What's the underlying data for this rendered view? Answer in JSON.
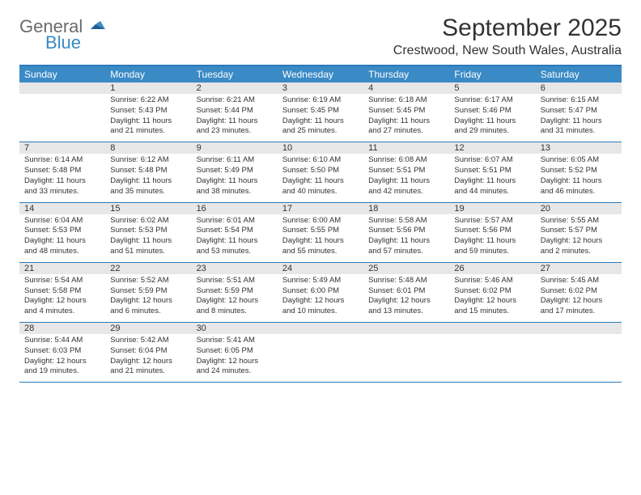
{
  "logo": {
    "line1": "General",
    "line2": "Blue",
    "color_general": "#6b6b6b",
    "color_blue": "#3a8ac6",
    "flag_color": "#205e92"
  },
  "header": {
    "month_title": "September 2025",
    "location": "Crestwood, New South Wales, Australia"
  },
  "colors": {
    "header_bar": "#3a8ac6",
    "header_text": "#ffffff",
    "rule": "#2a7ab9",
    "daynum_bg": "#e7e7e7",
    "text": "#333333",
    "background": "#ffffff"
  },
  "day_names": [
    "Sunday",
    "Monday",
    "Tuesday",
    "Wednesday",
    "Thursday",
    "Friday",
    "Saturday"
  ],
  "weeks": [
    [
      {
        "date": "",
        "sunrise": "",
        "sunset": "",
        "daylight": ""
      },
      {
        "date": "1",
        "sunrise": "Sunrise: 6:22 AM",
        "sunset": "Sunset: 5:43 PM",
        "daylight": "Daylight: 11 hours and 21 minutes."
      },
      {
        "date": "2",
        "sunrise": "Sunrise: 6:21 AM",
        "sunset": "Sunset: 5:44 PM",
        "daylight": "Daylight: 11 hours and 23 minutes."
      },
      {
        "date": "3",
        "sunrise": "Sunrise: 6:19 AM",
        "sunset": "Sunset: 5:45 PM",
        "daylight": "Daylight: 11 hours and 25 minutes."
      },
      {
        "date": "4",
        "sunrise": "Sunrise: 6:18 AM",
        "sunset": "Sunset: 5:45 PM",
        "daylight": "Daylight: 11 hours and 27 minutes."
      },
      {
        "date": "5",
        "sunrise": "Sunrise: 6:17 AM",
        "sunset": "Sunset: 5:46 PM",
        "daylight": "Daylight: 11 hours and 29 minutes."
      },
      {
        "date": "6",
        "sunrise": "Sunrise: 6:15 AM",
        "sunset": "Sunset: 5:47 PM",
        "daylight": "Daylight: 11 hours and 31 minutes."
      }
    ],
    [
      {
        "date": "7",
        "sunrise": "Sunrise: 6:14 AM",
        "sunset": "Sunset: 5:48 PM",
        "daylight": "Daylight: 11 hours and 33 minutes."
      },
      {
        "date": "8",
        "sunrise": "Sunrise: 6:12 AM",
        "sunset": "Sunset: 5:48 PM",
        "daylight": "Daylight: 11 hours and 35 minutes."
      },
      {
        "date": "9",
        "sunrise": "Sunrise: 6:11 AM",
        "sunset": "Sunset: 5:49 PM",
        "daylight": "Daylight: 11 hours and 38 minutes."
      },
      {
        "date": "10",
        "sunrise": "Sunrise: 6:10 AM",
        "sunset": "Sunset: 5:50 PM",
        "daylight": "Daylight: 11 hours and 40 minutes."
      },
      {
        "date": "11",
        "sunrise": "Sunrise: 6:08 AM",
        "sunset": "Sunset: 5:51 PM",
        "daylight": "Daylight: 11 hours and 42 minutes."
      },
      {
        "date": "12",
        "sunrise": "Sunrise: 6:07 AM",
        "sunset": "Sunset: 5:51 PM",
        "daylight": "Daylight: 11 hours and 44 minutes."
      },
      {
        "date": "13",
        "sunrise": "Sunrise: 6:05 AM",
        "sunset": "Sunset: 5:52 PM",
        "daylight": "Daylight: 11 hours and 46 minutes."
      }
    ],
    [
      {
        "date": "14",
        "sunrise": "Sunrise: 6:04 AM",
        "sunset": "Sunset: 5:53 PM",
        "daylight": "Daylight: 11 hours and 48 minutes."
      },
      {
        "date": "15",
        "sunrise": "Sunrise: 6:02 AM",
        "sunset": "Sunset: 5:53 PM",
        "daylight": "Daylight: 11 hours and 51 minutes."
      },
      {
        "date": "16",
        "sunrise": "Sunrise: 6:01 AM",
        "sunset": "Sunset: 5:54 PM",
        "daylight": "Daylight: 11 hours and 53 minutes."
      },
      {
        "date": "17",
        "sunrise": "Sunrise: 6:00 AM",
        "sunset": "Sunset: 5:55 PM",
        "daylight": "Daylight: 11 hours and 55 minutes."
      },
      {
        "date": "18",
        "sunrise": "Sunrise: 5:58 AM",
        "sunset": "Sunset: 5:56 PM",
        "daylight": "Daylight: 11 hours and 57 minutes."
      },
      {
        "date": "19",
        "sunrise": "Sunrise: 5:57 AM",
        "sunset": "Sunset: 5:56 PM",
        "daylight": "Daylight: 11 hours and 59 minutes."
      },
      {
        "date": "20",
        "sunrise": "Sunrise: 5:55 AM",
        "sunset": "Sunset: 5:57 PM",
        "daylight": "Daylight: 12 hours and 2 minutes."
      }
    ],
    [
      {
        "date": "21",
        "sunrise": "Sunrise: 5:54 AM",
        "sunset": "Sunset: 5:58 PM",
        "daylight": "Daylight: 12 hours and 4 minutes."
      },
      {
        "date": "22",
        "sunrise": "Sunrise: 5:52 AM",
        "sunset": "Sunset: 5:59 PM",
        "daylight": "Daylight: 12 hours and 6 minutes."
      },
      {
        "date": "23",
        "sunrise": "Sunrise: 5:51 AM",
        "sunset": "Sunset: 5:59 PM",
        "daylight": "Daylight: 12 hours and 8 minutes."
      },
      {
        "date": "24",
        "sunrise": "Sunrise: 5:49 AM",
        "sunset": "Sunset: 6:00 PM",
        "daylight": "Daylight: 12 hours and 10 minutes."
      },
      {
        "date": "25",
        "sunrise": "Sunrise: 5:48 AM",
        "sunset": "Sunset: 6:01 PM",
        "daylight": "Daylight: 12 hours and 13 minutes."
      },
      {
        "date": "26",
        "sunrise": "Sunrise: 5:46 AM",
        "sunset": "Sunset: 6:02 PM",
        "daylight": "Daylight: 12 hours and 15 minutes."
      },
      {
        "date": "27",
        "sunrise": "Sunrise: 5:45 AM",
        "sunset": "Sunset: 6:02 PM",
        "daylight": "Daylight: 12 hours and 17 minutes."
      }
    ],
    [
      {
        "date": "28",
        "sunrise": "Sunrise: 5:44 AM",
        "sunset": "Sunset: 6:03 PM",
        "daylight": "Daylight: 12 hours and 19 minutes."
      },
      {
        "date": "29",
        "sunrise": "Sunrise: 5:42 AM",
        "sunset": "Sunset: 6:04 PM",
        "daylight": "Daylight: 12 hours and 21 minutes."
      },
      {
        "date": "30",
        "sunrise": "Sunrise: 5:41 AM",
        "sunset": "Sunset: 6:05 PM",
        "daylight": "Daylight: 12 hours and 24 minutes."
      },
      {
        "date": "",
        "sunrise": "",
        "sunset": "",
        "daylight": ""
      },
      {
        "date": "",
        "sunrise": "",
        "sunset": "",
        "daylight": ""
      },
      {
        "date": "",
        "sunrise": "",
        "sunset": "",
        "daylight": ""
      },
      {
        "date": "",
        "sunrise": "",
        "sunset": "",
        "daylight": ""
      }
    ]
  ]
}
